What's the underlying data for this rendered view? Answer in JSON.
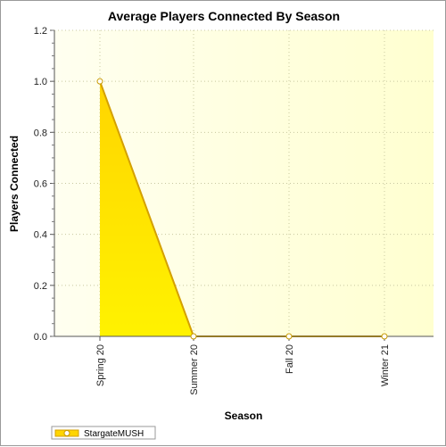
{
  "chart_data": {
    "type": "area",
    "title": "Average Players Connected By Season",
    "xlabel": "Season",
    "ylabel": "Players Connected",
    "categories": [
      "Spring 20",
      "Summer 20",
      "Fall 20",
      "Winter 21"
    ],
    "series": [
      {
        "name": "StargateMUSH",
        "values": [
          1.0,
          0.0,
          0.0,
          0.0
        ]
      }
    ],
    "ylim": [
      0.0,
      1.2
    ],
    "yticks": [
      "0.0",
      "0.2",
      "0.4",
      "0.6",
      "0.8",
      "1.0",
      "1.2"
    ],
    "grid": true,
    "legend": "bottom-left",
    "colors": {
      "area_fill_top": "#ffd500",
      "area_fill_bottom": "#fff200",
      "line": "#d4a000",
      "marker_fill": "#ffffff",
      "marker_stroke": "#c89a00",
      "plot_bg_left": "#fffff0",
      "plot_bg_right": "#ffffd0",
      "grid": "#c8c8a0"
    }
  }
}
